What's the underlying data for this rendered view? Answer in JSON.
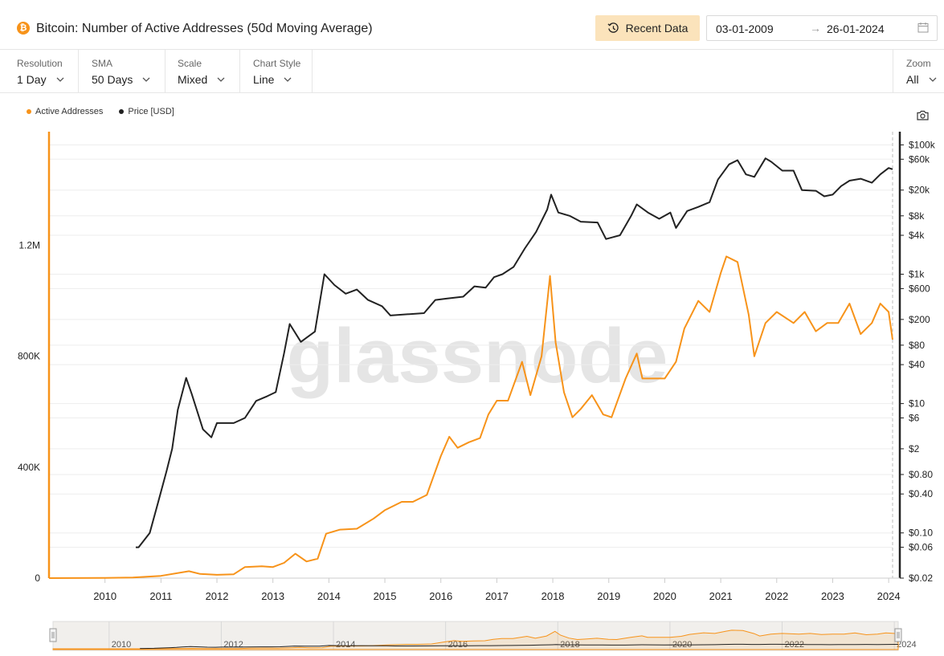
{
  "header": {
    "asset_glyph": "₿",
    "title": "Bitcoin: Number of Active Addresses (50d Moving Average)",
    "recent_label": "Recent Data",
    "date_from": "03-01-2009",
    "date_to": "26-01-2024",
    "icons": {
      "recent": "history-icon",
      "arrow": "arrow-right-icon",
      "calendar": "calendar-icon"
    }
  },
  "controls": [
    {
      "id": "resolution",
      "label": "Resolution",
      "value": "1 Day"
    },
    {
      "id": "sma",
      "label": "SMA",
      "value": "50 Days"
    },
    {
      "id": "scale",
      "label": "Scale",
      "value": "Mixed"
    },
    {
      "id": "chart-style",
      "label": "Chart Style",
      "value": "Line"
    }
  ],
  "zoom": {
    "label": "Zoom",
    "value": "All"
  },
  "legend": [
    {
      "name": "Active Addresses",
      "color": "#f7931a"
    },
    {
      "name": "Price [USD]",
      "color": "#222222"
    }
  ],
  "watermark": "glassnode",
  "chart_data": {
    "type": "line",
    "title": "Bitcoin: Number of Active Addresses (50d Moving Average)",
    "x_axis": {
      "ticks": [
        "2010",
        "2011",
        "2012",
        "2013",
        "2014",
        "2015",
        "2016",
        "2017",
        "2018",
        "2019",
        "2020",
        "2021",
        "2022",
        "2023",
        "2024"
      ],
      "range": [
        2009.0,
        2024.07
      ]
    },
    "y_left": {
      "scale": "linear",
      "range": [
        0,
        1610000
      ],
      "ticks": [
        0,
        400000,
        800000,
        1200000
      ],
      "tick_labels": [
        "0",
        "400K",
        "800K",
        "1.2M"
      ]
    },
    "y_right": {
      "scale": "log",
      "range": [
        0.02,
        160000
      ],
      "ticks": [
        0.02,
        0.06,
        0.1,
        0.4,
        0.8,
        2,
        6,
        10,
        40,
        80,
        200,
        600,
        1000,
        4000,
        8000,
        20000,
        60000,
        100000
      ],
      "tick_labels": [
        "$0.02",
        "$0.06",
        "$0.10",
        "$0.40",
        "$0.80",
        "$2",
        "$6",
        "$10",
        "$40",
        "$80",
        "$200",
        "$600",
        "$1k",
        "$4k",
        "$8k",
        "$20k",
        "$60k",
        "$100k"
      ]
    },
    "series": [
      {
        "name": "Active Addresses",
        "axis": "left",
        "color": "#f7931a",
        "points": [
          [
            2009.0,
            0
          ],
          [
            2010.0,
            500
          ],
          [
            2010.5,
            2000
          ],
          [
            2011.0,
            8000
          ],
          [
            2011.5,
            25000
          ],
          [
            2011.7,
            15000
          ],
          [
            2012.0,
            12000
          ],
          [
            2012.3,
            14000
          ],
          [
            2012.5,
            40000
          ],
          [
            2012.8,
            43000
          ],
          [
            2013.0,
            40000
          ],
          [
            2013.2,
            55000
          ],
          [
            2013.4,
            88000
          ],
          [
            2013.6,
            60000
          ],
          [
            2013.8,
            70000
          ],
          [
            2013.95,
            160000
          ],
          [
            2014.2,
            175000
          ],
          [
            2014.5,
            178000
          ],
          [
            2014.8,
            215000
          ],
          [
            2015.0,
            245000
          ],
          [
            2015.3,
            275000
          ],
          [
            2015.5,
            275000
          ],
          [
            2015.75,
            300000
          ],
          [
            2016.0,
            440000
          ],
          [
            2016.15,
            510000
          ],
          [
            2016.3,
            470000
          ],
          [
            2016.5,
            490000
          ],
          [
            2016.7,
            505000
          ],
          [
            2016.85,
            590000
          ],
          [
            2017.0,
            640000
          ],
          [
            2017.2,
            640000
          ],
          [
            2017.45,
            780000
          ],
          [
            2017.6,
            660000
          ],
          [
            2017.8,
            800000
          ],
          [
            2017.95,
            1090000
          ],
          [
            2018.05,
            850000
          ],
          [
            2018.2,
            670000
          ],
          [
            2018.35,
            580000
          ],
          [
            2018.5,
            610000
          ],
          [
            2018.7,
            660000
          ],
          [
            2018.9,
            590000
          ],
          [
            2019.05,
            580000
          ],
          [
            2019.3,
            720000
          ],
          [
            2019.5,
            810000
          ],
          [
            2019.6,
            720000
          ],
          [
            2019.75,
            720000
          ],
          [
            2020.0,
            720000
          ],
          [
            2020.2,
            780000
          ],
          [
            2020.35,
            900000
          ],
          [
            2020.6,
            1000000
          ],
          [
            2020.8,
            960000
          ],
          [
            2021.0,
            1100000
          ],
          [
            2021.1,
            1160000
          ],
          [
            2021.3,
            1140000
          ],
          [
            2021.5,
            950000
          ],
          [
            2021.6,
            800000
          ],
          [
            2021.8,
            920000
          ],
          [
            2022.0,
            960000
          ],
          [
            2022.3,
            920000
          ],
          [
            2022.5,
            960000
          ],
          [
            2022.7,
            890000
          ],
          [
            2022.9,
            920000
          ],
          [
            2023.1,
            920000
          ],
          [
            2023.3,
            990000
          ],
          [
            2023.5,
            880000
          ],
          [
            2023.7,
            920000
          ],
          [
            2023.85,
            990000
          ],
          [
            2024.0,
            960000
          ],
          [
            2024.07,
            860000
          ]
        ]
      },
      {
        "name": "Price [USD]",
        "axis": "right",
        "color": "#222222",
        "points": [
          [
            2010.55,
            0.06
          ],
          [
            2010.6,
            0.06
          ],
          [
            2010.8,
            0.1
          ],
          [
            2010.95,
            0.3
          ],
          [
            2011.1,
            0.9
          ],
          [
            2011.2,
            2
          ],
          [
            2011.3,
            8
          ],
          [
            2011.45,
            25
          ],
          [
            2011.55,
            14
          ],
          [
            2011.75,
            4
          ],
          [
            2011.9,
            3
          ],
          [
            2012.0,
            5
          ],
          [
            2012.3,
            5
          ],
          [
            2012.5,
            6
          ],
          [
            2012.7,
            11
          ],
          [
            2012.9,
            13
          ],
          [
            2013.05,
            15
          ],
          [
            2013.2,
            60
          ],
          [
            2013.3,
            170
          ],
          [
            2013.5,
            90
          ],
          [
            2013.75,
            130
          ],
          [
            2013.92,
            1000
          ],
          [
            2014.1,
            680
          ],
          [
            2014.3,
            500
          ],
          [
            2014.5,
            580
          ],
          [
            2014.7,
            400
          ],
          [
            2014.95,
            320
          ],
          [
            2015.1,
            230
          ],
          [
            2015.4,
            240
          ],
          [
            2015.7,
            250
          ],
          [
            2015.9,
            400
          ],
          [
            2016.1,
            420
          ],
          [
            2016.4,
            450
          ],
          [
            2016.6,
            650
          ],
          [
            2016.8,
            620
          ],
          [
            2016.95,
            900
          ],
          [
            2017.1,
            1000
          ],
          [
            2017.3,
            1300
          ],
          [
            2017.5,
            2500
          ],
          [
            2017.7,
            4500
          ],
          [
            2017.9,
            10000
          ],
          [
            2017.97,
            17000
          ],
          [
            2018.1,
            9000
          ],
          [
            2018.3,
            8000
          ],
          [
            2018.5,
            6500
          ],
          [
            2018.8,
            6300
          ],
          [
            2018.95,
            3500
          ],
          [
            2019.2,
            4000
          ],
          [
            2019.4,
            8000
          ],
          [
            2019.5,
            12000
          ],
          [
            2019.7,
            9000
          ],
          [
            2019.9,
            7200
          ],
          [
            2020.1,
            9000
          ],
          [
            2020.2,
            5200
          ],
          [
            2020.4,
            9500
          ],
          [
            2020.6,
            11000
          ],
          [
            2020.8,
            13000
          ],
          [
            2020.95,
            29000
          ],
          [
            2021.15,
            50000
          ],
          [
            2021.3,
            58000
          ],
          [
            2021.45,
            35000
          ],
          [
            2021.6,
            32000
          ],
          [
            2021.8,
            62000
          ],
          [
            2021.9,
            55000
          ],
          [
            2022.1,
            40000
          ],
          [
            2022.3,
            40000
          ],
          [
            2022.45,
            20000
          ],
          [
            2022.7,
            19500
          ],
          [
            2022.85,
            16000
          ],
          [
            2023.0,
            17000
          ],
          [
            2023.15,
            23000
          ],
          [
            2023.3,
            28000
          ],
          [
            2023.5,
            30000
          ],
          [
            2023.7,
            26000
          ],
          [
            2023.85,
            35000
          ],
          [
            2024.0,
            44000
          ],
          [
            2024.07,
            42000
          ]
        ]
      }
    ],
    "grid": true,
    "legend_position": "top-left",
    "navigator": {
      "ticks": [
        "2010",
        "2012",
        "2014",
        "2016",
        "2018",
        "2020",
        "2022",
        "2024"
      ]
    }
  }
}
